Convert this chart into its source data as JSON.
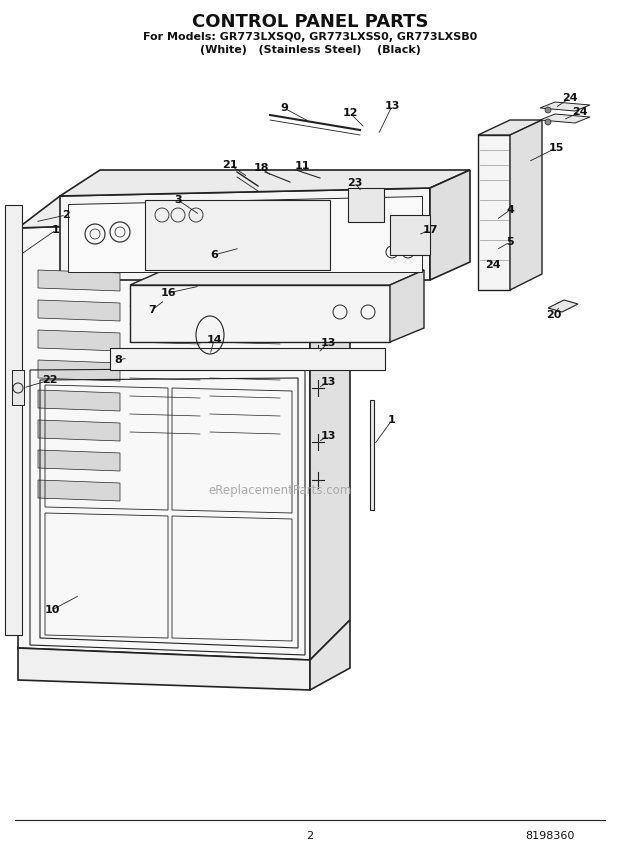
{
  "title": "CONTROL PANEL PARTS",
  "subtitle1": "For Models: GR773LXSQ0, GR773LXSS0, GR773LXSB0",
  "subtitle2": "(White)   (Stainless Steel)    (Black)",
  "page_number": "2",
  "part_number": "8198360",
  "watermark": "eReplacementParts.com",
  "bg_color": "#ffffff",
  "lc": "#222222",
  "tc": "#111111",
  "title_fs": 13,
  "sub1_fs": 8.0,
  "sub2_fs": 8.0,
  "label_fs": 8.0,
  "footer_fs": 8.0,
  "wm_fs": 8.5,
  "figw": 6.2,
  "figh": 8.56,
  "dpi": 100
}
